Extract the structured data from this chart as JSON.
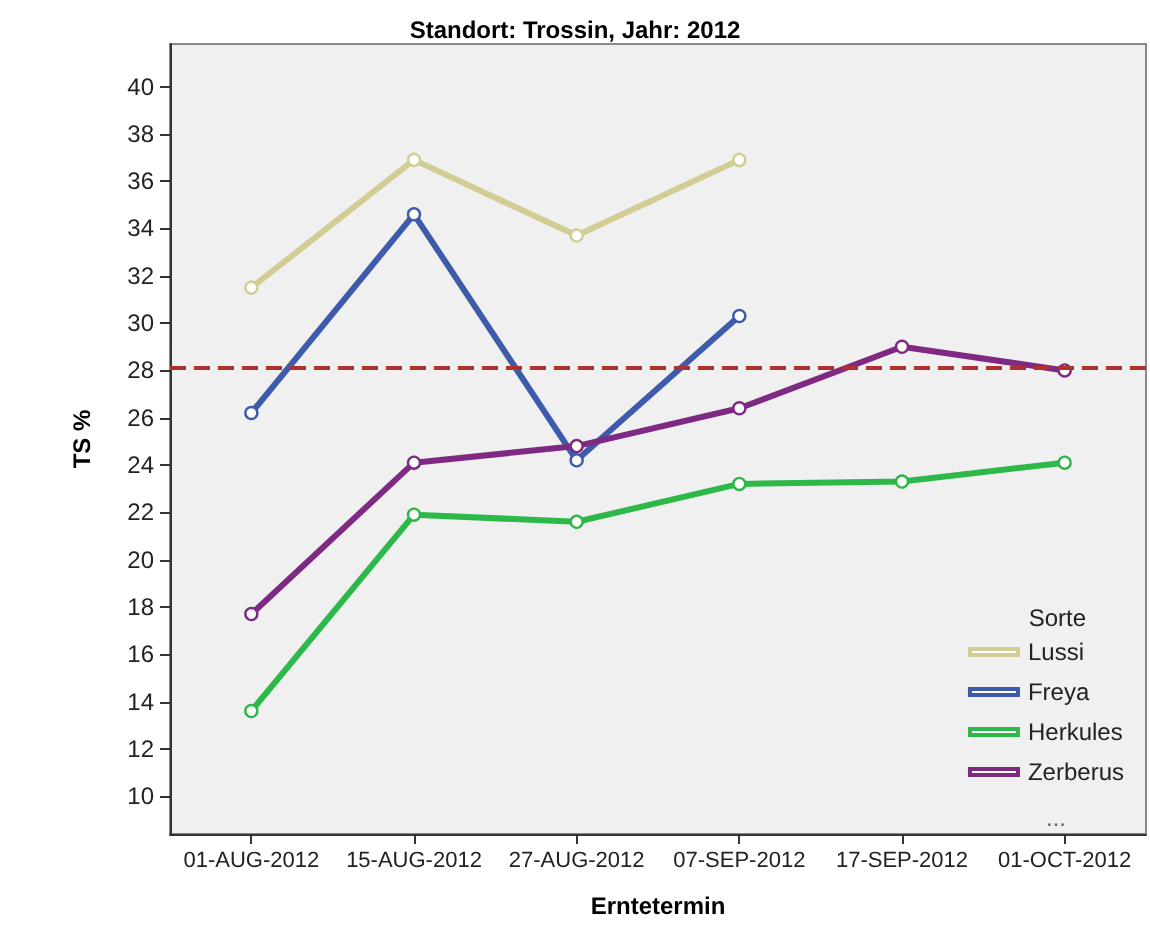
{
  "chart_data": {
    "type": "line",
    "title": "Standort: Trossin, Jahr: 2012",
    "xlabel": "Erntetermin",
    "ylabel": "TS %",
    "legend_title": "Sorte",
    "categories": [
      "01-AUG-2012",
      "15-AUG-2012",
      "27-AUG-2012",
      "07-SEP-2012",
      "17-SEP-2012",
      "01-OCT-2012"
    ],
    "series": [
      {
        "name": "Lussi",
        "color": "#d2cc95",
        "values": [
          31.5,
          36.9,
          33.7,
          36.9,
          null,
          null
        ]
      },
      {
        "name": "Freya",
        "color": "#3d5aab",
        "values": [
          26.2,
          34.6,
          24.2,
          30.3,
          null,
          null
        ]
      },
      {
        "name": "Herkules",
        "color": "#2db84a",
        "values": [
          13.6,
          21.9,
          21.6,
          23.2,
          23.3,
          24.1
        ]
      },
      {
        "name": "Zerberus",
        "color": "#7e2a83",
        "values": [
          17.7,
          24.1,
          24.8,
          26.4,
          29.0,
          28.0
        ]
      }
    ],
    "ylim": [
      8.4,
      41.8
    ],
    "yticks": [
      10,
      12,
      14,
      16,
      18,
      20,
      22,
      24,
      26,
      28,
      30,
      32,
      34,
      36,
      38,
      40
    ],
    "ref_lines": [
      {
        "axis": "y",
        "value": 28.1,
        "color": "#b03030",
        "line_style": "dashed"
      }
    ],
    "annotations": [
      "..."
    ],
    "grid": false,
    "legend": "bottom right",
    "marker": "circle",
    "line_style": "solid"
  }
}
